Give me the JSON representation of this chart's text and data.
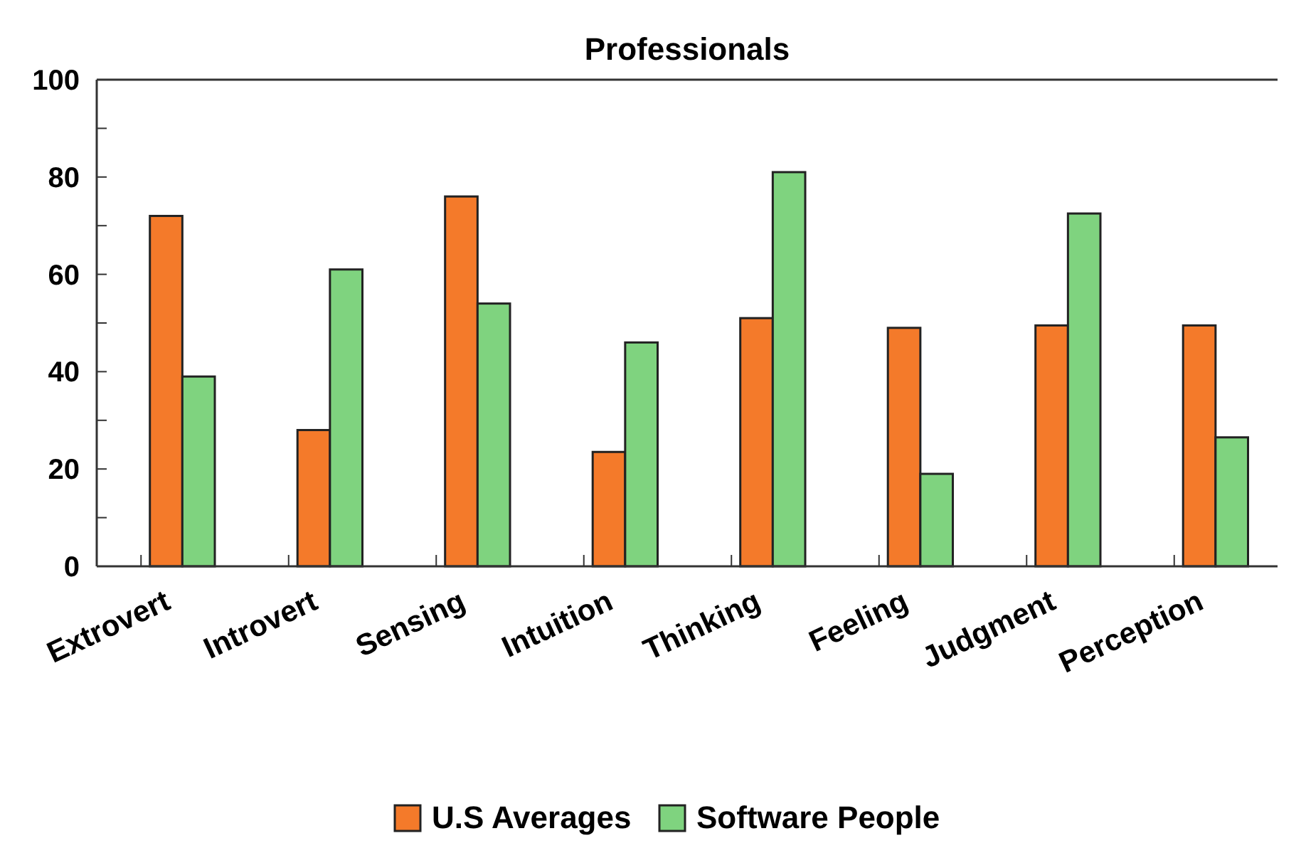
{
  "chart_data": {
    "type": "bar",
    "title": "Professionals",
    "categories": [
      "Extrovert",
      "Introvert",
      "Sensing",
      "Intuition",
      "Thinking",
      "Feeling",
      "Judgment",
      "Perception"
    ],
    "series": [
      {
        "name": "U.S Averages",
        "color": "#f47a2a",
        "values": [
          72,
          28,
          76,
          23.5,
          51,
          49,
          49.5,
          49.5
        ]
      },
      {
        "name": "Software People",
        "color": "#7fd37f",
        "values": [
          39,
          61,
          54,
          46,
          81,
          19,
          72.5,
          26.5
        ]
      }
    ],
    "ylim": [
      0,
      100
    ],
    "yticks": [
      0,
      {
        "value": 10,
        "label": null
      },
      20,
      {
        "value": 30,
        "label": null
      },
      40,
      {
        "value": 50,
        "label": null
      },
      60,
      {
        "value": 70,
        "label": null
      },
      80,
      {
        "value": 90,
        "label": null
      },
      100
    ],
    "legend": "bottom",
    "grid": false
  }
}
